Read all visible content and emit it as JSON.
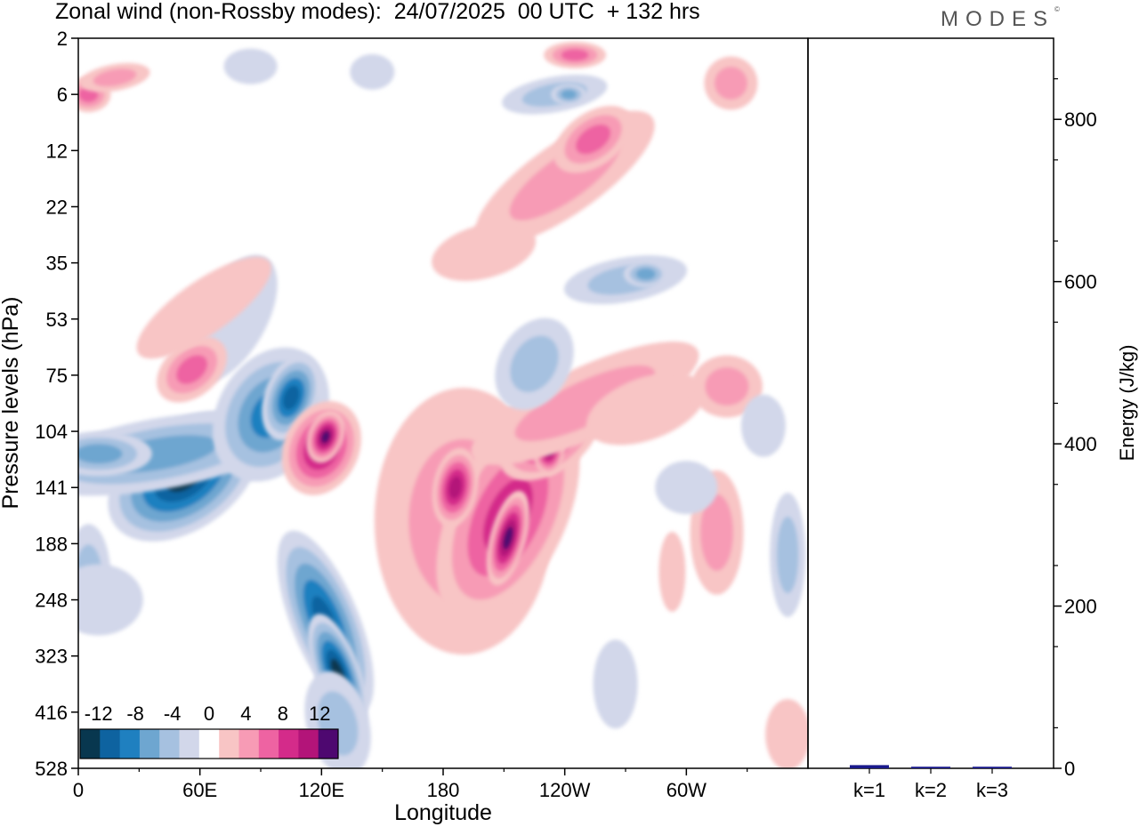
{
  "title": "Zonal wind (non-Rossby modes):  24/07/2025  00 UTC  + 132 hrs",
  "brand": "MODES",
  "brand_mark": "©",
  "chart_data": [
    {
      "type": "heatmap",
      "title": "Zonal wind (non-Rossby modes):  24/07/2025  00 UTC  + 132 hrs",
      "xlabel": "Longitude",
      "ylabel": "Pressure levels (hPa)",
      "x_ticks": [
        "0",
        "60E",
        "120E",
        "180",
        "120W",
        "60W"
      ],
      "x_tick_degrees": [
        0,
        60,
        120,
        180,
        240,
        300
      ],
      "xlim": [
        0,
        360
      ],
      "y_ticks": [
        "2",
        "6",
        "12",
        "22",
        "35",
        "53",
        "75",
        "104",
        "141",
        "188",
        "248",
        "323",
        "416",
        "528"
      ],
      "colorbar": {
        "labels": [
          "-12",
          "-8",
          "-4",
          "0",
          "4",
          "8",
          "12"
        ],
        "label_values": [
          -12,
          -8,
          -4,
          0,
          4,
          8,
          12
        ],
        "bins": [
          -14,
          -12,
          -10,
          -8,
          -6,
          -4,
          -2,
          2,
          4,
          6,
          8,
          10,
          12,
          14
        ],
        "colors": [
          "#08374f",
          "#0e63a0",
          "#1f80c0",
          "#6ea6d0",
          "#a6c1e0",
          "#d2d7ea",
          "#ffffff",
          "#f8c5c5",
          "#f79bb5",
          "#ee63a2",
          "#d42b8a",
          "#b31479",
          "#4e0870"
        ]
      },
      "features": [
        {
          "name": "strong-easterly-core-60E",
          "lon": 50,
          "level_index": 7.7,
          "value": -13
        },
        {
          "name": "easterly-band-120E",
          "lon": 125,
          "level_index": 10.5,
          "value": -9
        },
        {
          "name": "westerly-core-120E",
          "lon": 122,
          "level_index": 7.3,
          "value": 10
        },
        {
          "name": "westerly-core-140W",
          "lon": 232,
          "level_index": 7.4,
          "value": 10
        },
        {
          "name": "westerly-core-160W",
          "lon": 212,
          "level_index": 8.8,
          "value": 11
        },
        {
          "name": "westerly-core-180",
          "lon": 186,
          "level_index": 8.0,
          "value": 10
        },
        {
          "name": "westerly-upper-60E",
          "lon": 56,
          "level_index": 5.9,
          "value": 7
        }
      ]
    },
    {
      "type": "bar",
      "ylabel": "Energy (J/kg)",
      "ylim": [
        0,
        900
      ],
      "y_ticks": [
        0,
        200,
        400,
        600,
        800
      ],
      "categories": [
        "k=1",
        "k=2",
        "k=3"
      ],
      "values": [
        4,
        2,
        2
      ],
      "bar_color": "#1a1a8c"
    }
  ]
}
